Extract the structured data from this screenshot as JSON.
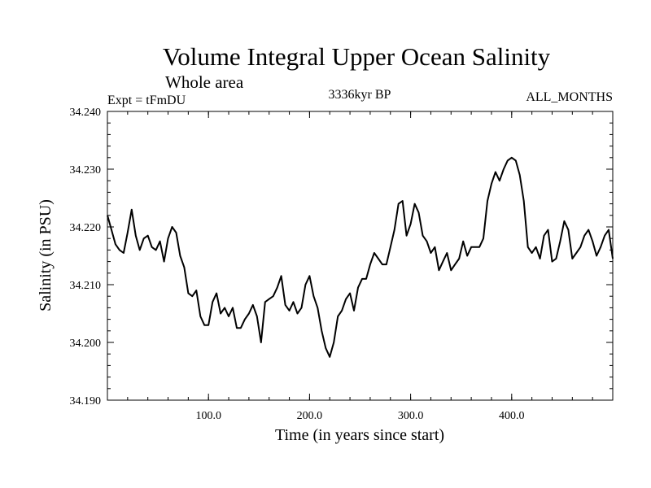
{
  "chart_data": {
    "type": "line",
    "title": "Volume Integral Upper Ocean Salinity",
    "subtitle": "Whole area",
    "left_label": "Expt = tFmDU",
    "center_label": "3336kyr BP",
    "right_label": "ALL_MONTHS",
    "xlabel": "Time (in years since start)",
    "ylabel": "Salinity (in PSU)",
    "xlim": [
      0,
      500
    ],
    "ylim": [
      34.19,
      34.24
    ],
    "x_ticks": [
      100,
      200,
      300,
      400
    ],
    "x_tick_labels": [
      "100.0",
      "200.0",
      "300.0",
      "400.0"
    ],
    "y_ticks": [
      34.19,
      34.2,
      34.21,
      34.22,
      34.23,
      34.24
    ],
    "y_tick_labels": [
      "34.190",
      "34.200",
      "34.210",
      "34.220",
      "34.230",
      "34.240"
    ],
    "series": [
      {
        "name": "Salinity",
        "color": "#000000",
        "x": [
          0,
          4,
          8,
          12,
          16,
          20,
          24,
          28,
          32,
          36,
          40,
          44,
          48,
          52,
          56,
          60,
          64,
          68,
          72,
          76,
          80,
          84,
          88,
          92,
          96,
          100,
          104,
          108,
          112,
          116,
          120,
          124,
          128,
          132,
          136,
          140,
          144,
          148,
          152,
          156,
          160,
          164,
          168,
          172,
          176,
          180,
          184,
          188,
          192,
          196,
          200,
          204,
          208,
          212,
          216,
          220,
          224,
          228,
          232,
          236,
          240,
          244,
          248,
          252,
          256,
          260,
          264,
          268,
          272,
          276,
          280,
          284,
          288,
          292,
          296,
          300,
          304,
          308,
          312,
          316,
          320,
          324,
          328,
          332,
          336,
          340,
          344,
          348,
          352,
          356,
          360,
          364,
          368,
          372,
          376,
          380,
          384,
          388,
          392,
          396,
          400,
          404,
          408,
          412,
          416,
          420,
          424,
          428,
          432,
          436,
          440,
          444,
          448,
          452,
          456,
          460,
          464,
          468,
          472,
          476,
          480,
          484,
          488,
          492,
          496,
          500
        ],
        "y": [
          34.222,
          34.2195,
          34.217,
          34.216,
          34.2155,
          34.219,
          34.223,
          34.2185,
          34.216,
          34.218,
          34.2185,
          34.2165,
          34.216,
          34.2175,
          34.214,
          34.218,
          34.22,
          34.219,
          34.215,
          34.213,
          34.2085,
          34.208,
          34.209,
          34.2045,
          34.203,
          34.203,
          34.207,
          34.2085,
          34.205,
          34.206,
          34.2045,
          34.206,
          34.2025,
          34.2025,
          34.204,
          34.205,
          34.2065,
          34.2045,
          34.2,
          34.207,
          34.2075,
          34.208,
          34.2095,
          34.2115,
          34.2065,
          34.2055,
          34.207,
          34.205,
          34.206,
          34.21,
          34.2115,
          34.208,
          34.206,
          34.202,
          34.199,
          34.1975,
          34.2,
          34.2045,
          34.2055,
          34.2075,
          34.2085,
          34.2055,
          34.2095,
          34.211,
          34.211,
          34.2135,
          34.2155,
          34.2145,
          34.2135,
          34.2135,
          34.2165,
          34.2195,
          34.224,
          34.2245,
          34.2185,
          34.2205,
          34.224,
          34.2225,
          34.2185,
          34.2175,
          34.2155,
          34.2165,
          34.2125,
          34.214,
          34.2155,
          34.2125,
          34.2135,
          34.2145,
          34.2175,
          34.215,
          34.2165,
          34.2165,
          34.2165,
          34.218,
          34.2245,
          34.2275,
          34.2295,
          34.228,
          34.23,
          34.2315,
          34.232,
          34.2315,
          34.229,
          34.2245,
          34.2165,
          34.2155,
          34.2165,
          34.2145,
          34.2185,
          34.2195,
          34.214,
          34.2145,
          34.2175,
          34.221,
          34.2195,
          34.2145,
          34.2155,
          34.2165,
          34.2185,
          34.2195,
          34.2175,
          34.215,
          34.2165,
          34.2185,
          34.2195,
          34.2145
        ]
      }
    ]
  }
}
